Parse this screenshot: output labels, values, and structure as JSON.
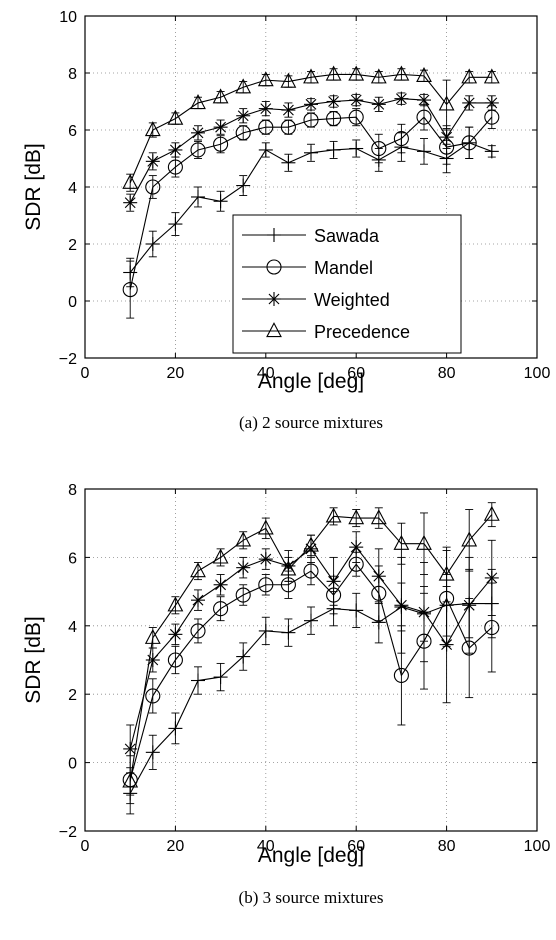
{
  "chart_data": [
    {
      "type": "line",
      "caption": "(a) 2 source mixtures",
      "xlabel": "Angle [deg]",
      "ylabel": "SDR [dB]",
      "xlim": [
        0,
        100
      ],
      "ylim": [
        -2,
        10
      ],
      "xticks": [
        0,
        20,
        40,
        60,
        80,
        100
      ],
      "yticks": [
        -2,
        0,
        2,
        4,
        6,
        8,
        10
      ],
      "grid": "dotted",
      "legend_position": "bottom-right",
      "x": [
        10,
        15,
        20,
        25,
        30,
        35,
        40,
        45,
        50,
        55,
        60,
        65,
        70,
        75,
        80,
        85,
        90
      ],
      "series": [
        {
          "name": "Sawada",
          "marker": "plus",
          "values": [
            1.0,
            2.0,
            2.7,
            3.65,
            3.5,
            4.05,
            5.3,
            4.85,
            5.2,
            5.3,
            5.35,
            4.95,
            5.4,
            5.25,
            5.0,
            5.55,
            5.25
          ],
          "err": [
            0.5,
            0.45,
            0.4,
            0.35,
            0.35,
            0.35,
            0.25,
            0.3,
            0.3,
            0.3,
            0.3,
            0.4,
            0.5,
            0.45,
            0.5,
            0.55,
            0.2
          ]
        },
        {
          "name": "Mandel",
          "marker": "circle",
          "values": [
            0.4,
            4.0,
            4.7,
            5.3,
            5.5,
            5.9,
            6.1,
            6.1,
            6.35,
            6.4,
            6.45,
            5.35,
            5.7,
            6.45,
            5.4,
            5.55,
            6.45
          ],
          "err": [
            1.0,
            0.4,
            0.35,
            0.3,
            0.3,
            0.25,
            0.25,
            0.25,
            0.25,
            0.25,
            0.3,
            0.5,
            0.5,
            0.45,
            0.6,
            0.55,
            0.4
          ]
        },
        {
          "name": "Weighted",
          "marker": "asterisk",
          "values": [
            3.45,
            4.9,
            5.3,
            5.9,
            6.1,
            6.5,
            6.75,
            6.7,
            6.9,
            7.0,
            7.05,
            6.9,
            7.1,
            7.05,
            5.75,
            6.95,
            6.95
          ],
          "err": [
            0.3,
            0.3,
            0.25,
            0.25,
            0.25,
            0.25,
            0.25,
            0.25,
            0.2,
            0.2,
            0.2,
            0.25,
            0.2,
            0.2,
            0.4,
            0.25,
            0.25
          ]
        },
        {
          "name": "Precedence",
          "marker": "triangle",
          "values": [
            4.15,
            6.0,
            6.4,
            6.95,
            7.15,
            7.5,
            7.75,
            7.7,
            7.85,
            7.95,
            7.95,
            7.85,
            7.95,
            7.9,
            6.9,
            7.85,
            7.85
          ],
          "err": [
            0.3,
            0.25,
            0.2,
            0.2,
            0.2,
            0.2,
            0.2,
            0.2,
            0.2,
            0.2,
            0.2,
            0.2,
            0.2,
            0.2,
            0.85,
            0.2,
            0.2
          ]
        }
      ]
    },
    {
      "type": "line",
      "caption": "(b) 3 source mixtures",
      "xlabel": "Angle [deg]",
      "ylabel": "SDR [dB]",
      "xlim": [
        0,
        100
      ],
      "ylim": [
        -2,
        8
      ],
      "xticks": [
        0,
        20,
        40,
        60,
        80,
        100
      ],
      "yticks": [
        -2,
        0,
        2,
        4,
        6,
        8
      ],
      "grid": "dotted",
      "legend_position": "none",
      "x": [
        10,
        15,
        20,
        25,
        30,
        35,
        40,
        45,
        50,
        55,
        60,
        65,
        70,
        75,
        80,
        85,
        90
      ],
      "series": [
        {
          "name": "Sawada",
          "marker": "plus",
          "values": [
            -0.9,
            0.3,
            1.0,
            2.4,
            2.5,
            3.1,
            3.85,
            3.8,
            4.15,
            4.5,
            4.45,
            4.1,
            4.55,
            4.35,
            4.6,
            4.65,
            4.65
          ],
          "err": [
            0.6,
            0.5,
            0.45,
            0.4,
            0.4,
            0.4,
            0.4,
            0.4,
            0.4,
            0.5,
            0.5,
            0.6,
            0.7,
            0.8,
            0.9,
            1.0,
            1.0
          ]
        },
        {
          "name": "Mandel",
          "marker": "circle",
          "values": [
            -0.5,
            1.95,
            3.0,
            3.85,
            4.5,
            4.9,
            5.2,
            5.2,
            5.6,
            4.9,
            5.8,
            4.95,
            2.55,
            3.55,
            4.8,
            3.35,
            3.95
          ],
          "err": [
            0.7,
            0.5,
            0.4,
            0.35,
            0.35,
            0.3,
            0.3,
            0.4,
            0.4,
            0.55,
            0.35,
            0.8,
            1.45,
            1.4,
            1.4,
            1.45,
            1.3
          ]
        },
        {
          "name": "Weighted",
          "marker": "asterisk",
          "values": [
            0.4,
            3.0,
            3.75,
            4.75,
            5.2,
            5.7,
            5.95,
            5.75,
            6.25,
            5.3,
            6.3,
            5.45,
            4.6,
            4.4,
            3.45,
            4.6,
            5.4
          ],
          "err": [
            0.7,
            0.35,
            0.3,
            0.3,
            0.3,
            0.3,
            0.3,
            0.45,
            0.4,
            0.7,
            0.45,
            0.8,
            1.4,
            1.45,
            1.7,
            1.4,
            1.1
          ]
        },
        {
          "name": "Precedence",
          "marker": "triangle",
          "values": [
            -0.55,
            3.65,
            4.6,
            5.6,
            6.0,
            6.5,
            6.85,
            5.65,
            6.35,
            7.2,
            7.15,
            7.15,
            6.4,
            6.4,
            5.5,
            6.5,
            7.25
          ],
          "err": [
            0.4,
            0.3,
            0.25,
            0.25,
            0.25,
            0.25,
            0.3,
            0.35,
            0.3,
            0.25,
            0.25,
            0.3,
            0.6,
            0.9,
            0.8,
            0.9,
            0.35
          ]
        }
      ]
    }
  ]
}
